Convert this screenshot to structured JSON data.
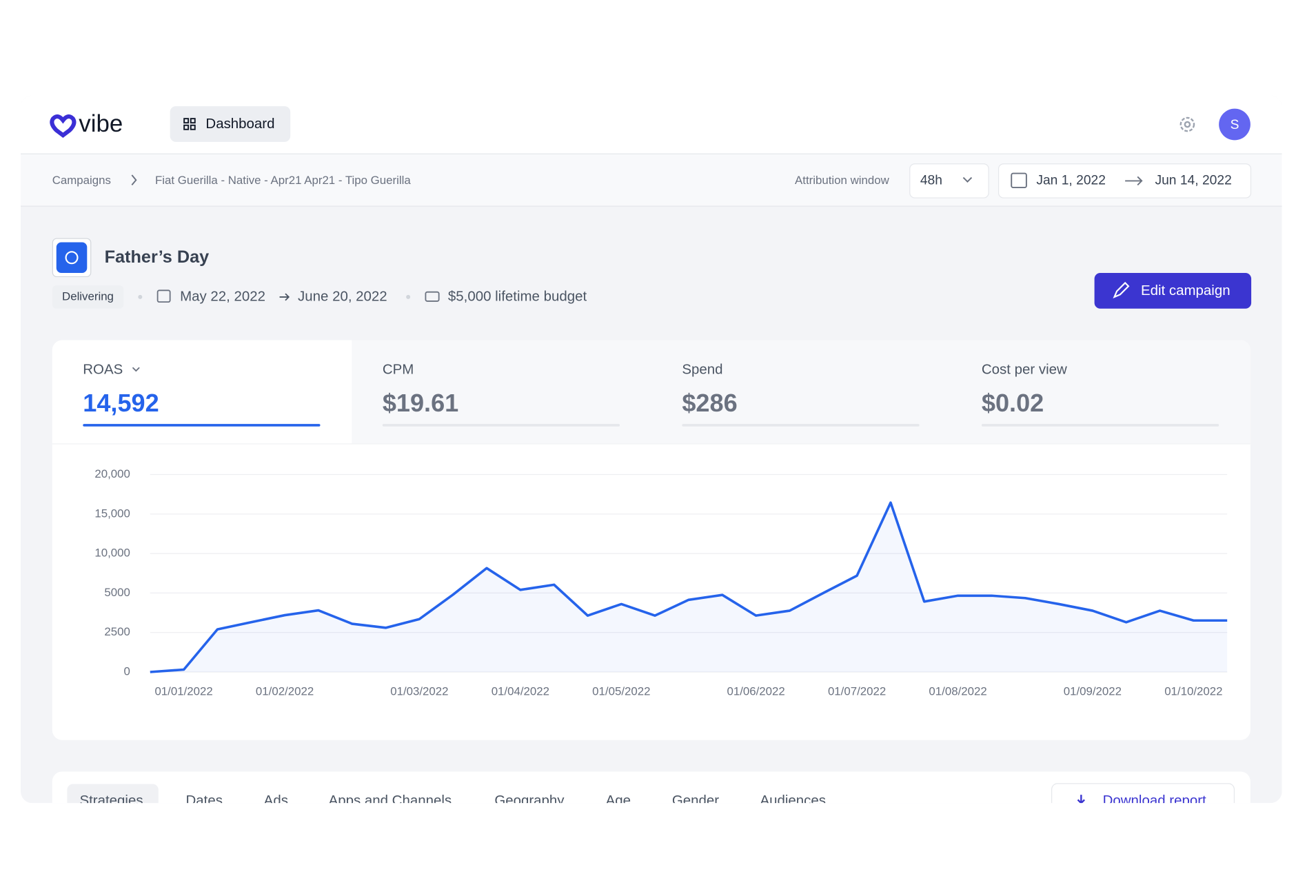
{
  "header": {
    "logo": "vibe",
    "nav": "Dashboard",
    "avatar": "S"
  },
  "breadcrumb": {
    "items": [
      "Campaigns",
      "Fiat Guerilla - Native - Apr21 Apr21 - Tipo Guerilla"
    ],
    "attribution_label": "Attribution window",
    "attribution_value": "48h",
    "date_start": "Jan 1, 2022",
    "date_end": "Jun 14, 2022"
  },
  "campaign": {
    "title": "Father’s Day",
    "status": "Delivering",
    "start": "May 22, 2022",
    "end": "June 20, 2022",
    "budget": "$5,000 lifetime budget",
    "action": "Edit campaign"
  },
  "metrics": [
    {
      "label": "ROAS",
      "value": "14,592"
    },
    {
      "label": "CPM",
      "value": "$19.61"
    },
    {
      "label": "Spend",
      "value": "$286"
    },
    {
      "label": "Cost per view",
      "value": "$0.02"
    }
  ],
  "chart_data": {
    "type": "line",
    "categories": [
      null,
      "01/01/2022",
      null,
      null,
      "01/02/2022",
      null,
      null,
      null,
      "01/03/2022",
      null,
      null,
      "01/04/2022",
      null,
      null,
      "01/05/2022",
      null,
      null,
      null,
      "01/06/2022",
      null,
      null,
      "01/07/2022",
      null,
      null,
      "01/08/2022",
      null,
      null,
      null,
      "01/09/2022",
      null,
      null,
      "01/10/2022",
      null
    ],
    "series": [
      {
        "name": "ROAS",
        "color": "#2563eb",
        "values": [
          0,
          150,
          2700,
          3150,
          3600,
          3900,
          3050,
          2800,
          3350,
          4900,
          8150,
          5400,
          6050,
          3570,
          4300,
          3570,
          4570,
          4880,
          3570,
          3880,
          5000,
          7200,
          16450,
          4460,
          4830,
          4830,
          4680,
          4300,
          3880,
          3150,
          3880,
          3260,
          3260
        ]
      }
    ],
    "ylim": [
      0,
      20000
    ],
    "yticks": [
      0,
      2500,
      5000,
      {
        "value": 10000,
        "label": "10,000"
      },
      {
        "value": 15000,
        "label": "15,000"
      },
      {
        "value": 20000,
        "label": "20,000"
      }
    ],
    "grid": true
  },
  "tabs": {
    "items": [
      "Strategies",
      "Dates",
      "Ads",
      "Apps and Channels",
      "Geography",
      "Age",
      "Gender",
      "Audiences"
    ],
    "action": "Download report"
  }
}
